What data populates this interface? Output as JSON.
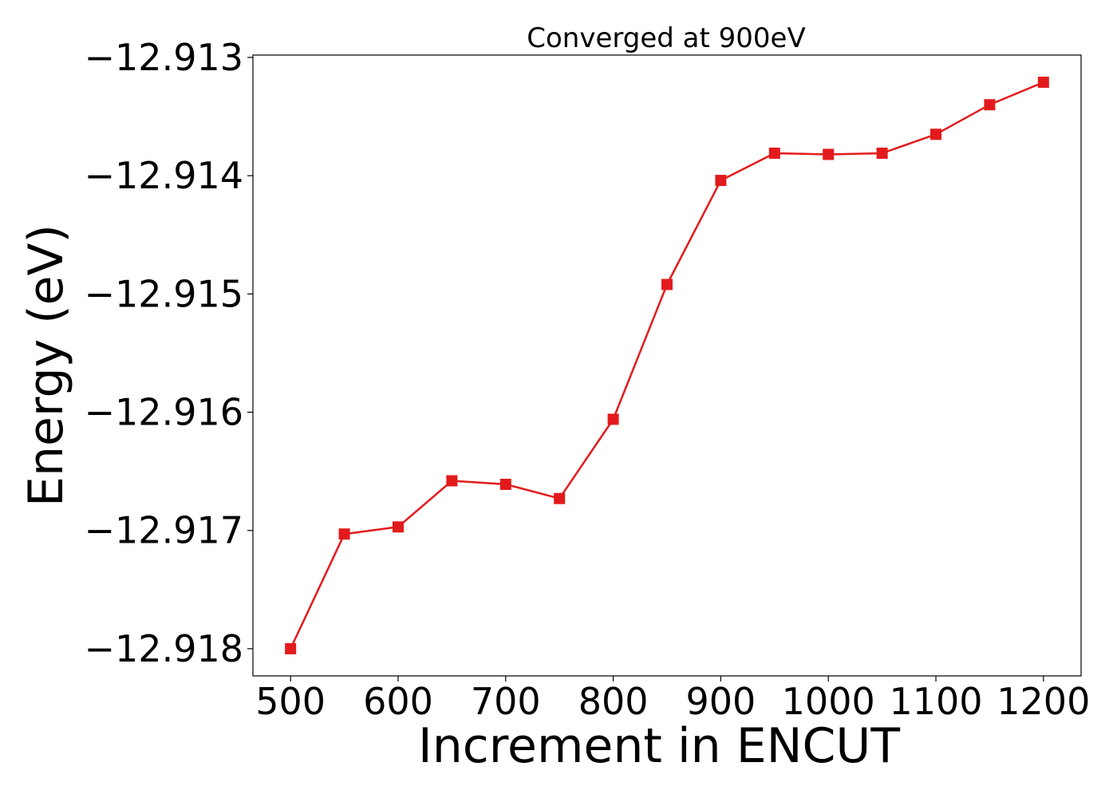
{
  "chart_data": {
    "type": "line",
    "title": "Converged at 900eV",
    "xlabel": "Increment in ENCUT",
    "ylabel": "Energy (eV)",
    "x": [
      500,
      550,
      600,
      650,
      700,
      750,
      800,
      850,
      900,
      950,
      1000,
      1050,
      1100,
      1150,
      1200
    ],
    "series": [
      {
        "values": [
          -12.918,
          -12.91703,
          -12.91697,
          -12.91658,
          -12.91661,
          -12.91673,
          -12.91606,
          -12.91492,
          -12.91404,
          -12.91381,
          -12.91382,
          -12.91381,
          -12.91365,
          -12.9134,
          -12.91321
        ],
        "color": "#e31a1c",
        "marker": "square"
      }
    ],
    "xlim": [
      465,
      1235
    ],
    "ylim": [
      -12.91823,
      -12.91298
    ],
    "xticks": [
      500,
      600,
      700,
      800,
      900,
      1000,
      1100,
      1200
    ],
    "xtick_labels": [
      "500",
      "600",
      "700",
      "800",
      "900",
      "1000",
      "1100",
      "1200"
    ],
    "yticks": [
      -12.913,
      -12.914,
      -12.915,
      -12.916,
      -12.917,
      -12.918
    ],
    "ytick_labels": [
      "−12.913",
      "−12.914",
      "−12.915",
      "−12.916",
      "−12.917",
      "−12.918"
    ],
    "grid": false,
    "legend": false
  }
}
